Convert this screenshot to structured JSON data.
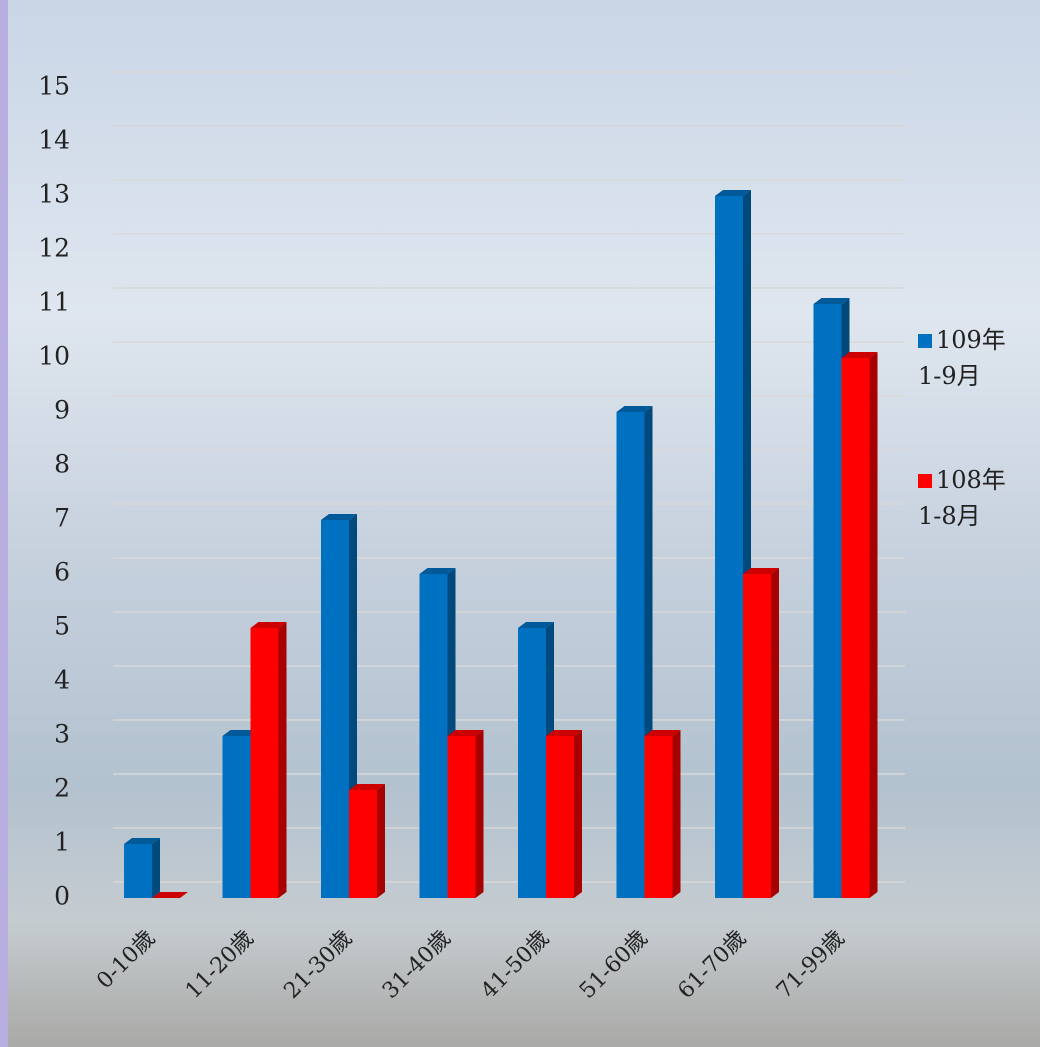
{
  "chart_data": {
    "type": "bar3d",
    "categories": [
      "0-10歲",
      "11-20歲",
      "21-30歲",
      "31-40歲",
      "41-50歲",
      "51-60歲",
      "61-70歲",
      "71-99歲"
    ],
    "series": [
      {
        "name": "109年 1-9月",
        "color": "#0070c0",
        "values": [
          1,
          3,
          7,
          6,
          5,
          9,
          13,
          11
        ]
      },
      {
        "name": "108年 1-8月",
        "color": "#ff0000",
        "values": [
          0,
          5,
          2,
          3,
          3,
          3,
          6,
          10
        ]
      }
    ],
    "ylim": [
      0,
      15
    ],
    "yticks": [
      0,
      1,
      2,
      3,
      4,
      5,
      6,
      7,
      8,
      9,
      10,
      11,
      12,
      13,
      14,
      15
    ],
    "grid": true,
    "legend": "right"
  }
}
